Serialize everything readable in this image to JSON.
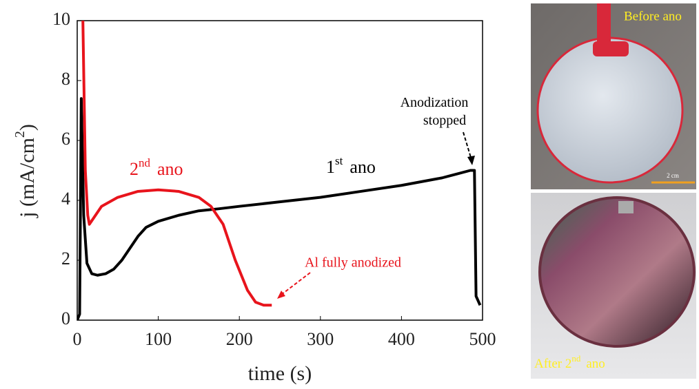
{
  "chart_data": {
    "type": "line",
    "xlabel": "time (s)",
    "ylabel": [
      "j (mA/cm",
      "2",
      ")"
    ],
    "xlim": [
      0,
      500
    ],
    "xticks": [
      0,
      100,
      200,
      300,
      400,
      500
    ],
    "ylim": [
      0,
      10
    ],
    "yticks": [
      0,
      2,
      4,
      6,
      8,
      10
    ],
    "series": [
      {
        "label": [
          "1",
          "st",
          "ano"
        ],
        "color": "#000000",
        "x": [
          0,
          3,
          5,
          8,
          12,
          18,
          25,
          35,
          45,
          55,
          65,
          75,
          85,
          100,
          125,
          150,
          175,
          200,
          250,
          300,
          350,
          400,
          450,
          485,
          490,
          492,
          497
        ],
        "values": [
          0,
          0.2,
          7.4,
          3.5,
          1.9,
          1.55,
          1.5,
          1.55,
          1.7,
          2.0,
          2.4,
          2.8,
          3.1,
          3.3,
          3.5,
          3.65,
          3.72,
          3.8,
          3.95,
          4.1,
          4.3,
          4.5,
          4.75,
          5.0,
          5.0,
          0.8,
          0.5
        ]
      },
      {
        "label": [
          "2",
          "nd",
          "ano"
        ],
        "color": "#e8141c",
        "x": [
          7,
          10,
          13,
          15,
          20,
          30,
          50,
          75,
          100,
          125,
          150,
          165,
          180,
          195,
          210,
          220,
          230,
          240
        ],
        "values": [
          10,
          5,
          3.5,
          3.2,
          3.4,
          3.8,
          4.1,
          4.3,
          4.35,
          4.3,
          4.1,
          3.8,
          3.2,
          2.0,
          1.0,
          0.6,
          0.5,
          0.5
        ]
      }
    ],
    "annotations": {
      "stopped": [
        "Anodization",
        "stopped"
      ],
      "fully": "Al fully anodized"
    }
  },
  "photos": {
    "before": "Before ano",
    "scale": "2 cm",
    "after": [
      "After 2",
      "nd",
      "ano"
    ]
  }
}
